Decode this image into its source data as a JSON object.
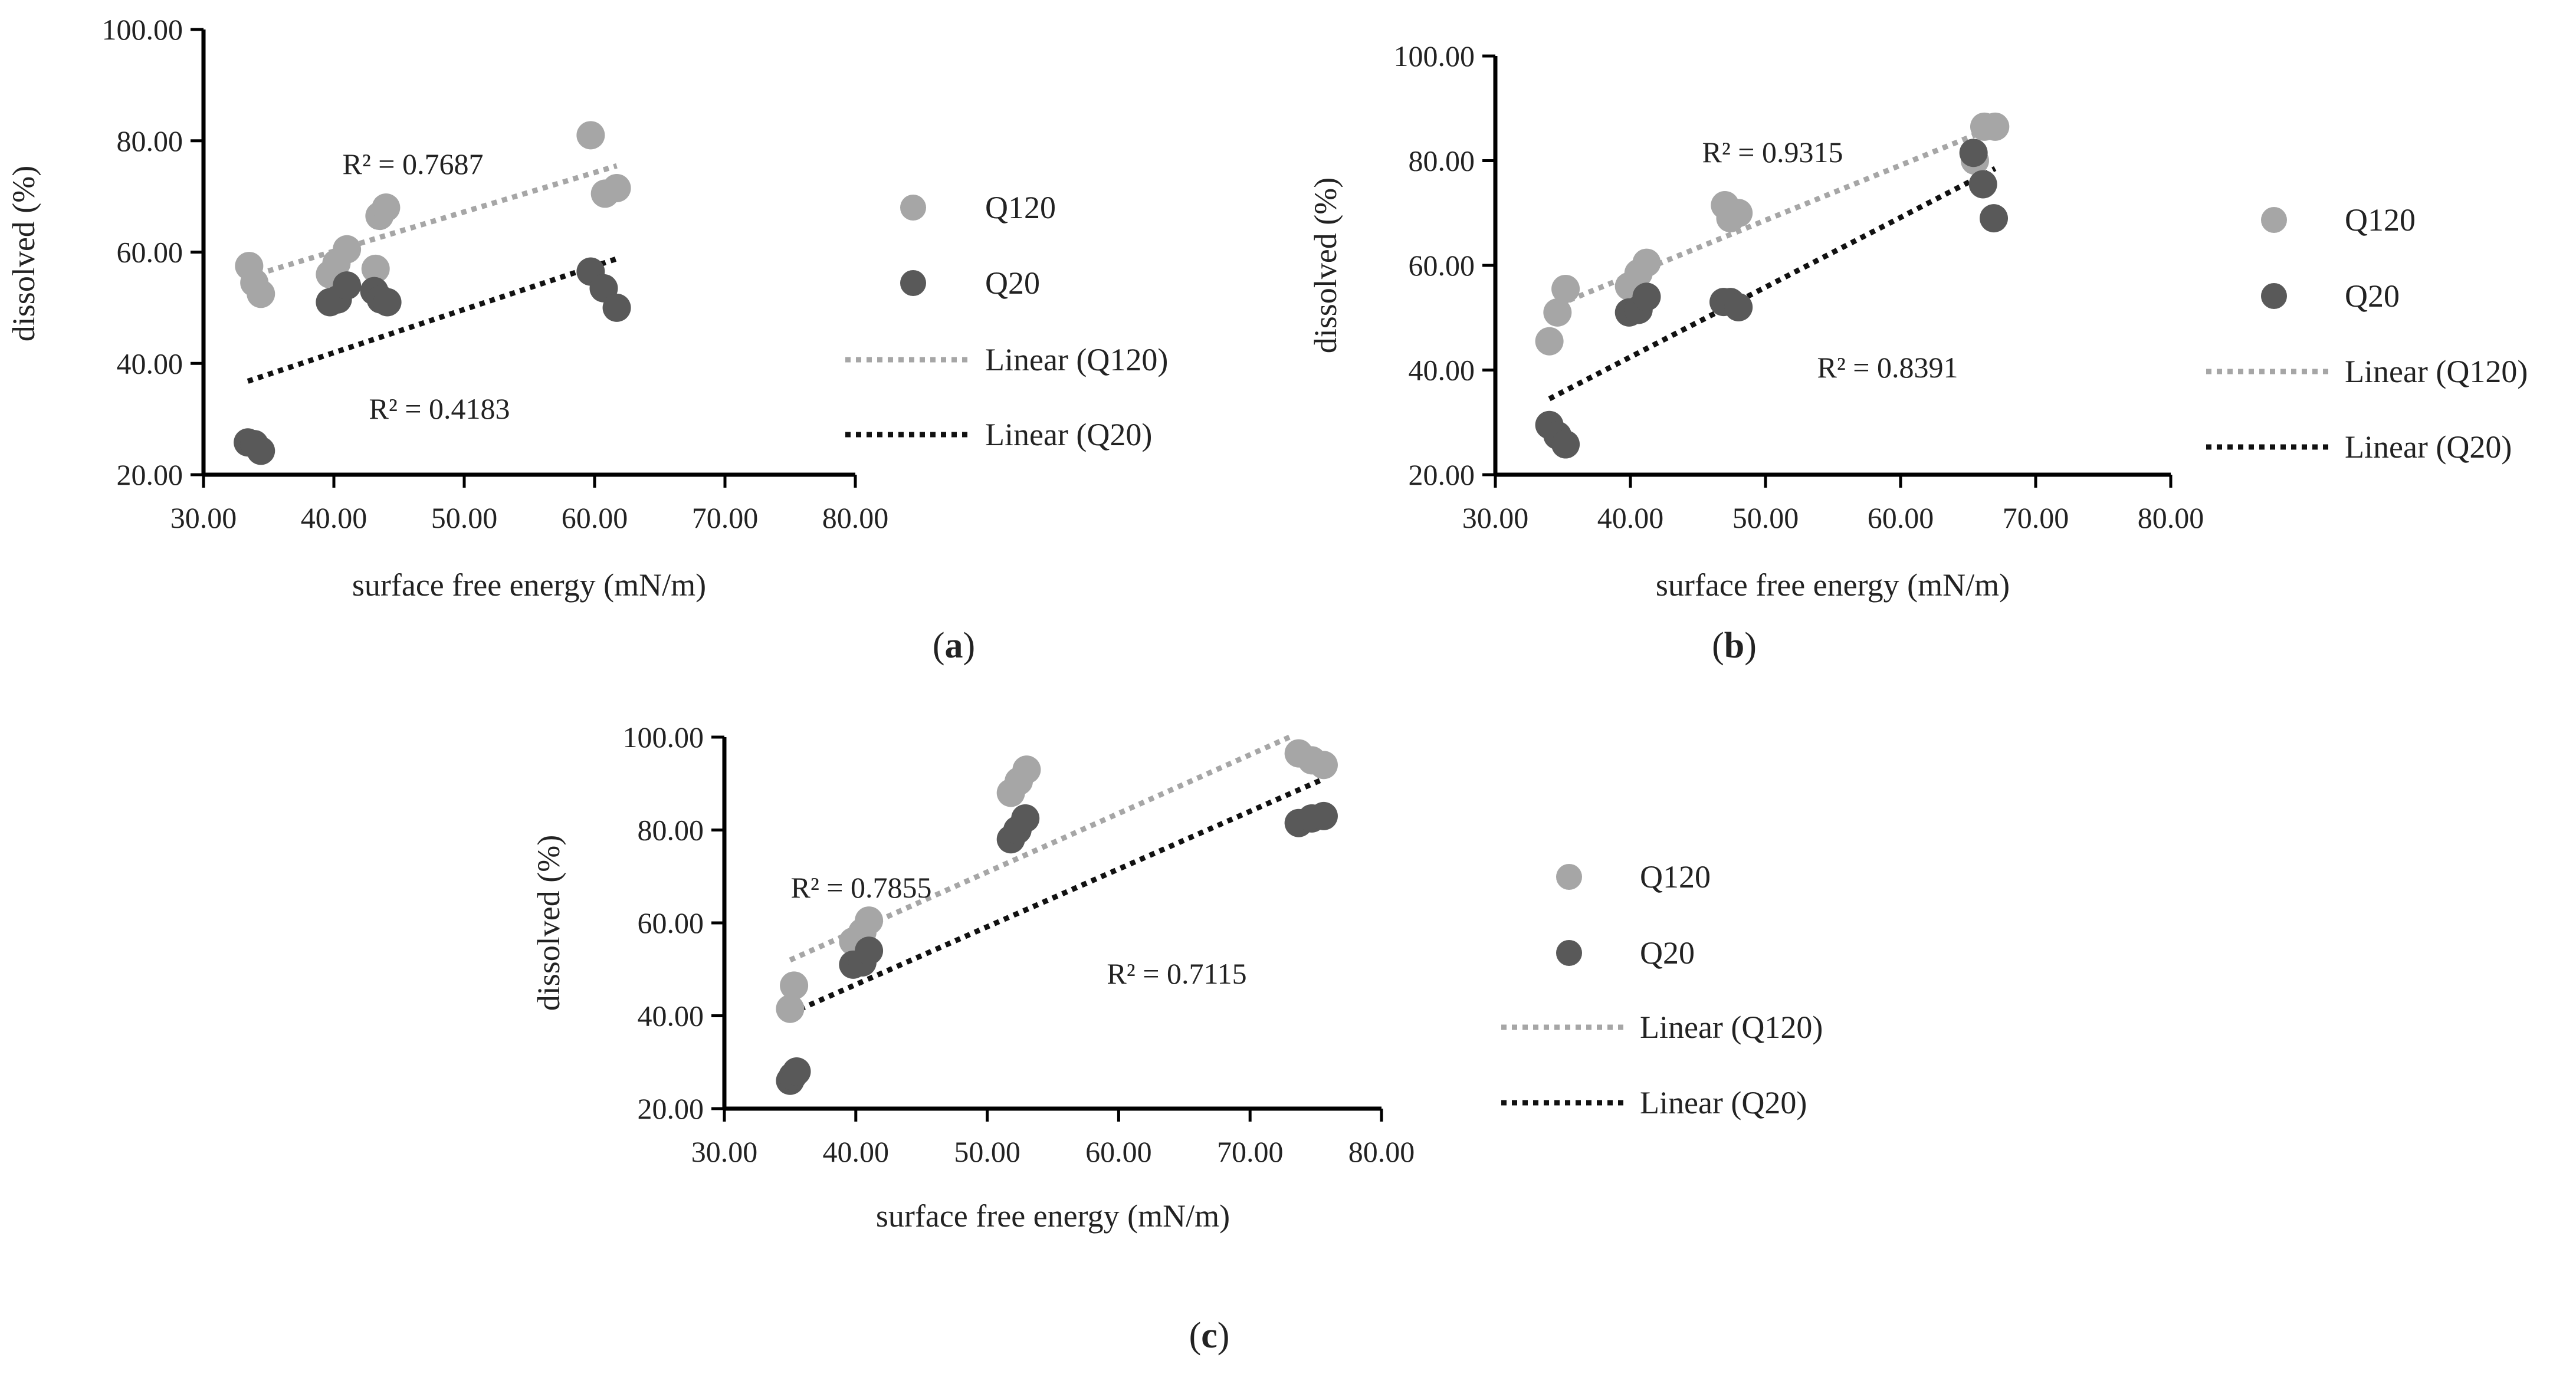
{
  "chart_data": [
    {
      "type": "scatter",
      "panel": "a",
      "xlabel": "surface free energy (mN/m)",
      "ylabel": "dissolved (%)",
      "xlim": [
        30,
        80
      ],
      "ylim": [
        20,
        100
      ],
      "xticks": [
        "30.00",
        "40.00",
        "50.00",
        "60.00",
        "70.00",
        "80.00"
      ],
      "yticks": [
        "20.00",
        "40.00",
        "60.00",
        "80.00",
        "100.00"
      ],
      "series": [
        {
          "name": "Q120",
          "color": "#a6a6a6",
          "points": [
            [
              33.5,
              57.5
            ],
            [
              33.9,
              54.5
            ],
            [
              34.4,
              52.5
            ],
            [
              39.7,
              56
            ],
            [
              40.2,
              58
            ],
            [
              41,
              60.5
            ],
            [
              43.2,
              57
            ],
            [
              43.5,
              66.5
            ],
            [
              44,
              68
            ],
            [
              59.7,
              81
            ],
            [
              60.8,
              70.5
            ],
            [
              61.7,
              71.5
            ]
          ]
        },
        {
          "name": "Q20",
          "color": "#595959",
          "points": [
            [
              33.4,
              25.8
            ],
            [
              33.9,
              25.5
            ],
            [
              34.4,
              24.3
            ],
            [
              39.7,
              51
            ],
            [
              40.3,
              51.5
            ],
            [
              41,
              54
            ],
            [
              43.1,
              53
            ],
            [
              43.6,
              51.5
            ],
            [
              44.1,
              51
            ],
            [
              59.7,
              56.5
            ],
            [
              60.7,
              53.5
            ],
            [
              61.7,
              50
            ]
          ]
        }
      ],
      "trendlines": [
        {
          "name": "Linear (Q120)",
          "color": "#a6a6a6",
          "x": [
            33.4,
            61.7
          ],
          "y": [
            55.5,
            75.5
          ],
          "r2": "R² = 0.7687"
        },
        {
          "name": "Linear (Q20)",
          "color": "#111111",
          "x": [
            33.4,
            61.7
          ],
          "y": [
            36.8,
            58.8
          ],
          "r2": "R² = 0.4183"
        }
      ],
      "legend": [
        "Q120",
        "Q20",
        "Linear (Q120)",
        "Linear (Q20)"
      ],
      "caption": "a"
    },
    {
      "type": "scatter",
      "panel": "b",
      "xlabel": "surface free energy (mN/m)",
      "ylabel": "dissolved (%)",
      "xlim": [
        30,
        80
      ],
      "ylim": [
        20,
        100
      ],
      "xticks": [
        "30.00",
        "40.00",
        "50.00",
        "60.00",
        "70.00",
        "80.00"
      ],
      "yticks": [
        "20.00",
        "40.00",
        "60.00",
        "80.00",
        "100.00"
      ],
      "series": [
        {
          "name": "Q120",
          "color": "#a6a6a6",
          "points": [
            [
              34,
              45.5
            ],
            [
              34.6,
              51
            ],
            [
              35.2,
              55.5
            ],
            [
              39.9,
              56
            ],
            [
              40.6,
              58.5
            ],
            [
              41.2,
              60.5
            ],
            [
              47,
              71.5
            ],
            [
              47.4,
              69
            ],
            [
              48,
              70
            ],
            [
              65.5,
              80
            ],
            [
              66.2,
              86.5
            ],
            [
              67,
              86.5
            ]
          ]
        },
        {
          "name": "Q20",
          "color": "#595959",
          "points": [
            [
              34,
              29.5
            ],
            [
              34.6,
              27.5
            ],
            [
              35.2,
              25.8
            ],
            [
              39.9,
              51
            ],
            [
              40.6,
              51.5
            ],
            [
              41.2,
              54
            ],
            [
              46.9,
              53
            ],
            [
              47.4,
              53
            ],
            [
              48,
              52
            ],
            [
              65.4,
              81.5
            ],
            [
              66.1,
              75.5
            ],
            [
              66.9,
              69
            ]
          ]
        }
      ],
      "trendlines": [
        {
          "name": "Linear (Q120)",
          "color": "#a6a6a6",
          "x": [
            34,
            67
          ],
          "y": [
            51.8,
            86.5
          ],
          "r2": "R² = 0.9315"
        },
        {
          "name": "Linear (Q20)",
          "color": "#111111",
          "x": [
            34,
            67
          ],
          "y": [
            34.5,
            78.5
          ],
          "r2": "R² = 0.8391"
        }
      ],
      "legend": [
        "Q120",
        "Q20",
        "Linear (Q120)",
        "Linear (Q20)"
      ],
      "caption": "b"
    },
    {
      "type": "scatter",
      "panel": "c",
      "xlabel": "surface free energy (mN/m)",
      "ylabel": "dissolved (%)",
      "xlim": [
        30,
        80
      ],
      "ylim": [
        20,
        100
      ],
      "xticks": [
        "30.00",
        "40.00",
        "50.00",
        "60.00",
        "70.00",
        "80.00"
      ],
      "yticks": [
        "20.00",
        "40.00",
        "60.00",
        "80.00",
        "100.00"
      ],
      "series": [
        {
          "name": "Q120",
          "color": "#a6a6a6",
          "points": [
            [
              35,
              41.5
            ],
            [
              35.3,
              46.5
            ],
            [
              39.8,
              56
            ],
            [
              40.5,
              58
            ],
            [
              41,
              60.5
            ],
            [
              51.8,
              88
            ],
            [
              52.4,
              90.5
            ],
            [
              53,
              93
            ],
            [
              73.7,
              96.5
            ],
            [
              74.7,
              95
            ],
            [
              75.6,
              94
            ]
          ]
        },
        {
          "name": "Q20",
          "color": "#595959",
          "points": [
            [
              35,
              26
            ],
            [
              35.2,
              27
            ],
            [
              35.5,
              28
            ],
            [
              39.8,
              51
            ],
            [
              40.5,
              51.5
            ],
            [
              41,
              54
            ],
            [
              51.8,
              78
            ],
            [
              52.3,
              80
            ],
            [
              52.9,
              82.5
            ],
            [
              73.7,
              81.5
            ],
            [
              74.7,
              82.5
            ],
            [
              75.6,
              83
            ]
          ]
        }
      ],
      "trendlines": [
        {
          "name": "Linear (Q120)",
          "color": "#a6a6a6",
          "x": [
            35,
            73
          ],
          "y": [
            52,
            100
          ],
          "r2": "R² = 0.7855"
        },
        {
          "name": "Linear (Q20)",
          "color": "#111111",
          "x": [
            35,
            75.6
          ],
          "y": [
            40.5,
            91
          ],
          "r2": "R² = 0.7115"
        }
      ],
      "legend": [
        "Q120",
        "Q20",
        "Linear (Q120)",
        "Linear (Q20)"
      ],
      "caption": "c"
    }
  ]
}
